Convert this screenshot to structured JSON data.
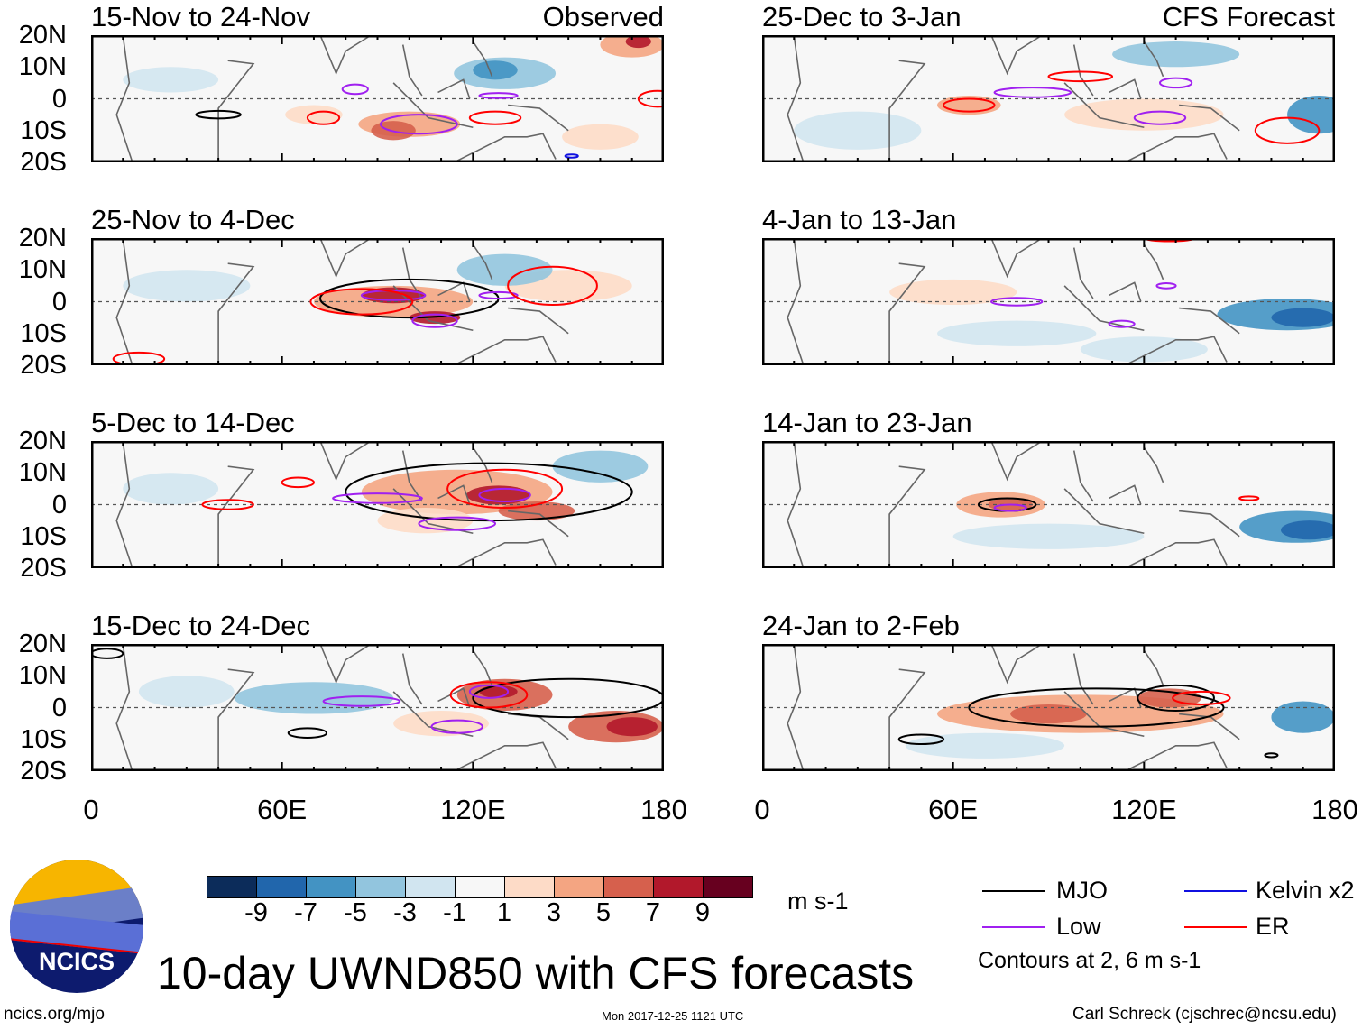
{
  "title": "10-day UWND850 with CFS forecasts",
  "logo_text": "NCICS",
  "footer": {
    "left": "ncics.org/mjo",
    "center": "Mon 2017-12-25 1121 UTC",
    "right": "Carl Schreck (cjschrec@ncsu.edu)"
  },
  "lat_labels": [
    "20N",
    "10N",
    "0",
    "10S",
    "20S"
  ],
  "lon_labels": [
    "0",
    "60E",
    "120E",
    "180"
  ],
  "colorbar": {
    "units": "m s-1",
    "labels": [
      "-9",
      "-7",
      "-5",
      "-3",
      "-1",
      "1",
      "3",
      "5",
      "7",
      "9"
    ],
    "colors": [
      "#0c2c5a",
      "#2166ac",
      "#4393c3",
      "#92c5de",
      "#d1e5f0",
      "#f7f7f7",
      "#fddbc7",
      "#f4a582",
      "#d6604d",
      "#b2182b",
      "#67001f"
    ]
  },
  "legend": {
    "items": [
      {
        "label": "MJO",
        "color": "#000000"
      },
      {
        "label": "Kelvin x2",
        "color": "#1010e0"
      },
      {
        "label": "Low",
        "color": "#a020f0"
      },
      {
        "label": "ER",
        "color": "#ff0000"
      }
    ],
    "note": "Contours at 2, 6 m s-1"
  },
  "panels": [
    {
      "title": "15-Nov to 24-Nov",
      "tag": "Observed",
      "col": 0,
      "row": 0,
      "anom": [
        [
          130,
          8,
          16,
          5,
          -4
        ],
        [
          127,
          9,
          7,
          3,
          -6
        ],
        [
          170,
          17,
          10,
          4,
          5
        ],
        [
          172,
          18,
          4,
          2,
          8
        ],
        [
          100,
          -8,
          16,
          4,
          4
        ],
        [
          95,
          -10,
          7,
          3,
          6
        ],
        [
          70,
          -5,
          9,
          3,
          3
        ],
        [
          25,
          6,
          15,
          4,
          -2
        ],
        [
          160,
          -12,
          12,
          4,
          2
        ]
      ],
      "contours": [
        [
          "MJO",
          40,
          -5,
          7,
          1.2
        ],
        [
          "Low",
          83,
          3,
          4,
          1.5
        ],
        [
          "Low",
          103,
          -8,
          12,
          3
        ],
        [
          "Low",
          128,
          1,
          6,
          0.8
        ],
        [
          "ER",
          73,
          -6,
          5,
          2
        ],
        [
          "ER",
          127,
          -6,
          8,
          2
        ],
        [
          "ER",
          178,
          0,
          6,
          2.5
        ],
        [
          "Kelvin",
          151,
          -18,
          2,
          0.5
        ]
      ]
    },
    {
      "title": "25-Nov to 4-Dec",
      "tag": "",
      "col": 0,
      "row": 1,
      "anom": [
        [
          95,
          0,
          25,
          5,
          5
        ],
        [
          95,
          2,
          10,
          2.5,
          8
        ],
        [
          108,
          -5,
          8,
          2,
          9
        ],
        [
          150,
          5,
          20,
          5,
          2
        ],
        [
          130,
          10,
          15,
          5,
          -3
        ],
        [
          30,
          5,
          20,
          5,
          -2
        ]
      ],
      "contours": [
        [
          "MJO",
          100,
          1,
          28,
          6
        ],
        [
          "Low",
          95,
          2,
          10,
          1.5
        ],
        [
          "Low",
          108,
          -6,
          7,
          2
        ],
        [
          "Low",
          128,
          2,
          6,
          1
        ],
        [
          "ER",
          85,
          0,
          16,
          4
        ],
        [
          "ER",
          145,
          5,
          14,
          6
        ],
        [
          "ER",
          15,
          -18,
          8,
          2
        ]
      ]
    },
    {
      "title": "5-Dec to 14-Dec",
      "tag": "",
      "col": 0,
      "row": 2,
      "anom": [
        [
          115,
          4,
          30,
          7,
          4
        ],
        [
          128,
          3,
          10,
          3,
          8
        ],
        [
          140,
          -2,
          12,
          3,
          6
        ],
        [
          160,
          12,
          15,
          5,
          -3
        ],
        [
          25,
          5,
          15,
          5,
          -2
        ],
        [
          105,
          -5,
          15,
          4,
          3
        ]
      ],
      "contours": [
        [
          "MJO",
          125,
          4,
          45,
          9
        ],
        [
          "Low",
          90,
          2,
          14,
          1.5
        ],
        [
          "Low",
          115,
          -6,
          12,
          2
        ],
        [
          "Low",
          130,
          3,
          8,
          2
        ],
        [
          "ER",
          130,
          5,
          18,
          6
        ],
        [
          "ER",
          65,
          7,
          5,
          1.5
        ],
        [
          "ER",
          43,
          0,
          8,
          1.5
        ]
      ]
    },
    {
      "title": "15-Dec to 24-Dec",
      "tag": "",
      "col": 0,
      "row": 3,
      "anom": [
        [
          130,
          4,
          15,
          5,
          7
        ],
        [
          128,
          5,
          6,
          2,
          9
        ],
        [
          165,
          -6,
          15,
          5,
          7
        ],
        [
          170,
          -6,
          8,
          3,
          8
        ],
        [
          70,
          3,
          25,
          5,
          -3
        ],
        [
          30,
          5,
          15,
          5,
          -2
        ],
        [
          110,
          -5,
          15,
          4,
          3
        ]
      ],
      "contours": [
        [
          "MJO",
          150,
          3,
          30,
          6
        ],
        [
          "MJO",
          68,
          -8,
          6,
          1.5
        ],
        [
          "MJO",
          5,
          17,
          5,
          1.5
        ],
        [
          "Low",
          85,
          2,
          12,
          1.5
        ],
        [
          "Low",
          115,
          -6,
          8,
          2
        ],
        [
          "Low",
          125,
          5,
          6,
          2
        ],
        [
          "ER",
          125,
          4,
          12,
          4
        ]
      ]
    },
    {
      "title": "25-Dec to 3-Jan",
      "tag": "CFS Forecast",
      "col": 1,
      "row": 0,
      "anom": [
        [
          130,
          14,
          20,
          4,
          -4
        ],
        [
          175,
          -5,
          10,
          6,
          -5
        ],
        [
          65,
          -2,
          10,
          3,
          4
        ],
        [
          120,
          -5,
          25,
          5,
          2
        ],
        [
          30,
          -10,
          20,
          6,
          -2
        ]
      ],
      "contours": [
        [
          "Low",
          85,
          2,
          12,
          1.5
        ],
        [
          "Low",
          125,
          -6,
          8,
          2
        ],
        [
          "Low",
          130,
          5,
          5,
          1.5
        ],
        [
          "ER",
          65,
          -2,
          8,
          2
        ],
        [
          "ER",
          100,
          7,
          10,
          1.5
        ],
        [
          "ER",
          165,
          -10,
          10,
          4
        ]
      ]
    },
    {
      "title": "4-Jan to 13-Jan",
      "tag": "",
      "col": 1,
      "row": 1,
      "anom": [
        [
          165,
          -4,
          22,
          5,
          -6
        ],
        [
          170,
          -5,
          10,
          3,
          -8
        ],
        [
          80,
          -10,
          25,
          4,
          -2
        ],
        [
          60,
          3,
          20,
          4,
          2
        ],
        [
          120,
          -15,
          20,
          4,
          -2
        ]
      ],
      "contours": [
        [
          "Low",
          80,
          0,
          8,
          1.2
        ],
        [
          "Low",
          113,
          -7,
          4,
          1
        ],
        [
          "Low",
          127,
          5,
          3,
          0.8
        ],
        [
          "ER",
          128,
          20,
          8,
          1
        ]
      ]
    },
    {
      "title": "14-Jan to 23-Jan",
      "tag": "",
      "col": 1,
      "row": 2,
      "anom": [
        [
          168,
          -7,
          18,
          5,
          -6
        ],
        [
          172,
          -8,
          9,
          3,
          -8
        ],
        [
          75,
          0,
          14,
          4,
          5
        ],
        [
          78,
          0,
          7,
          2,
          7
        ],
        [
          90,
          -10,
          30,
          4,
          -2
        ]
      ],
      "contours": [
        [
          "MJO",
          77,
          0,
          9,
          2
        ],
        [
          "Low",
          78,
          -1,
          5,
          1
        ],
        [
          "ER",
          153,
          2,
          3,
          0.6
        ]
      ]
    },
    {
      "title": "24-Jan to 2-Feb",
      "tag": "",
      "col": 1,
      "row": 3,
      "anom": [
        [
          100,
          -2,
          45,
          6,
          4
        ],
        [
          90,
          -2,
          12,
          3,
          7
        ],
        [
          128,
          3,
          10,
          3,
          7
        ],
        [
          170,
          -3,
          10,
          5,
          -6
        ],
        [
          70,
          -12,
          25,
          4,
          -2
        ]
      ],
      "contours": [
        [
          "MJO",
          105,
          0,
          40,
          6
        ],
        [
          "MJO",
          130,
          3,
          12,
          4
        ],
        [
          "MJO",
          50,
          -10,
          7,
          1.5
        ],
        [
          "MJO",
          160,
          -15,
          2,
          0.6
        ],
        [
          "ER",
          138,
          3,
          9,
          2
        ]
      ]
    }
  ]
}
